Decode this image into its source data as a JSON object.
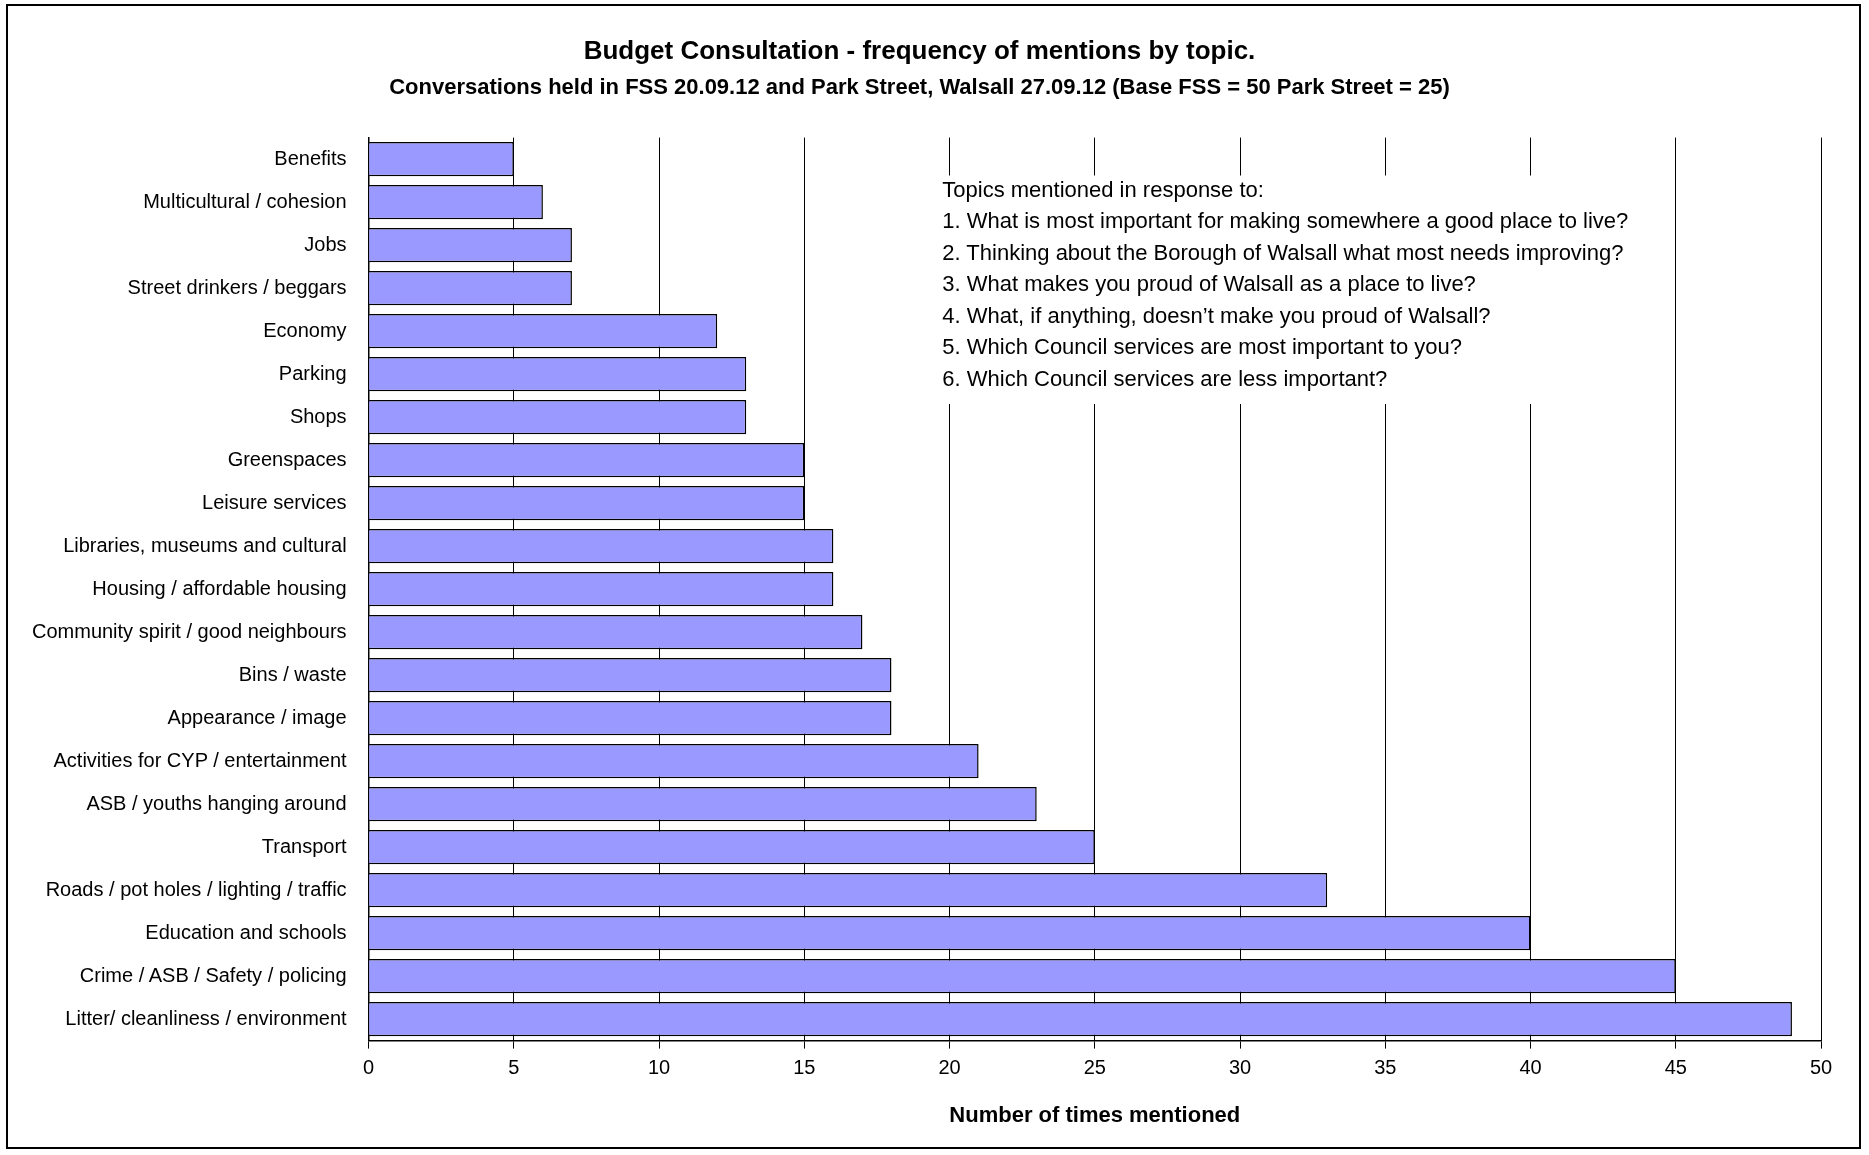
{
  "chart_data": {
    "type": "bar",
    "orientation": "horizontal",
    "title": "Budget Consultation - frequency of mentions by topic.",
    "subtitle": "Conversations held in FSS 20.09.12 and Park Street, Walsall 27.09.12 (Base FSS = 50 Park Street = 25)",
    "xlabel": "Number of times mentioned",
    "categories": [
      "Benefits",
      "Multicultural / cohesion",
      "Jobs",
      "Street drinkers / beggars",
      "Economy",
      "Parking",
      "Shops",
      "Greenspaces",
      "Leisure services",
      "Libraries, museums and cultural",
      "Housing / affordable housing",
      "Community spirit / good neighbours",
      "Bins / waste",
      "Appearance / image",
      "Activities for CYP / entertainment",
      "ASB / youths hanging around",
      "Transport",
      "Roads / pot holes / lighting / traffic",
      "Education and schools",
      "Crime / ASB / Safety / policing",
      "Litter/ cleanliness / environment"
    ],
    "values": [
      5,
      6,
      7,
      7,
      12,
      13,
      13,
      15,
      15,
      16,
      16,
      17,
      18,
      18,
      21,
      23,
      25,
      33,
      40,
      45,
      49
    ],
    "color": "#9999ff",
    "xlim": [
      0,
      50
    ],
    "xticks": [
      0,
      5,
      10,
      15,
      20,
      25,
      30,
      35,
      40,
      45,
      50
    ],
    "grid": "x",
    "legend": false,
    "annotations": [
      "Topics mentioned in response to:",
      "1. What is most important for making somewhere a good place to live?",
      "2. Thinking about the Borough of Walsall what most needs improving?",
      "3. What makes you proud of Walsall as a place to live?",
      "4. What, if anything, doesn’t make you proud of Walsall?",
      "5. Which Council services are most important to you?",
      "6. Which Council services are less important?"
    ]
  }
}
